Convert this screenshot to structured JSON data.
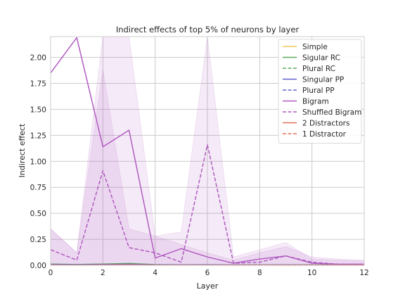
{
  "chart_data": {
    "type": "line",
    "title": "Indirect effects of top 5% of neurons by layer",
    "xlabel": "Layer",
    "ylabel": "Indirect effect",
    "xlim": [
      0,
      12
    ],
    "ylim": [
      0,
      2.2
    ],
    "x_ticks": [
      "0",
      "2",
      "4",
      "6",
      "8",
      "10",
      "12"
    ],
    "y_ticks": [
      "0.00",
      "0.25",
      "0.50",
      "0.75",
      "1.00",
      "1.25",
      "1.50",
      "1.75",
      "2.00"
    ],
    "grid": true,
    "legend_position": "top-right",
    "x": [
      0,
      1,
      2,
      3,
      4,
      5,
      6,
      7,
      8,
      9,
      10,
      11,
      12
    ],
    "series": [
      {
        "name": "Simple",
        "color": "#f2c85b",
        "dash": "solid",
        "values": [
          0.005,
          0.004,
          0.005,
          0.006,
          0.004,
          0.003,
          0.004,
          0.003,
          0.003,
          0.003,
          0.003,
          0.003,
          0.003
        ]
      },
      {
        "name": "Sigular RC",
        "color": "#5aaa5a",
        "dash": "solid",
        "values": [
          0.012,
          0.008,
          0.012,
          0.018,
          0.007,
          0.005,
          0.006,
          0.004,
          0.004,
          0.005,
          0.004,
          0.004,
          0.004
        ]
      },
      {
        "name": "Plural RC",
        "color": "#5aaa5a",
        "dash": "dashed",
        "values": [
          0.01,
          0.007,
          0.01,
          0.015,
          0.006,
          0.004,
          0.005,
          0.004,
          0.004,
          0.004,
          0.004,
          0.004,
          0.004
        ]
      },
      {
        "name": "Singular PP",
        "color": "#6060d0",
        "dash": "solid",
        "values": [
          0.008,
          0.006,
          0.008,
          0.01,
          0.005,
          0.004,
          0.005,
          0.004,
          0.003,
          0.004,
          0.003,
          0.003,
          0.003
        ]
      },
      {
        "name": "Plural PP",
        "color": "#6060d0",
        "dash": "dashed",
        "values": [
          0.007,
          0.005,
          0.007,
          0.009,
          0.004,
          0.004,
          0.004,
          0.003,
          0.003,
          0.003,
          0.003,
          0.003,
          0.003
        ]
      },
      {
        "name": "Bigram",
        "color": "#b05cc0",
        "dash": "solid",
        "values": [
          1.85,
          2.19,
          1.14,
          1.3,
          0.07,
          0.16,
          0.08,
          0.02,
          0.06,
          0.09,
          0.02,
          0.01,
          0.01
        ],
        "band_upper": [
          0.35,
          0.12,
          2.2,
          2.2,
          0.28,
          0.2,
          0.12,
          0.05,
          0.12,
          0.18,
          0.08,
          0.06,
          0.05
        ],
        "band_lower": [
          0,
          0,
          0,
          0,
          0,
          0,
          0,
          0,
          0,
          0,
          0,
          0,
          0
        ]
      },
      {
        "name": "Shuffled Bigram",
        "color": "#b05cc0",
        "dash": "dashed",
        "values": [
          0.15,
          0.05,
          0.91,
          0.17,
          0.12,
          0.03,
          1.16,
          0.02,
          0.03,
          0.09,
          0.03,
          0.01,
          0.01
        ],
        "band_upper": [
          0.35,
          0.12,
          1.88,
          0.35,
          0.28,
          0.32,
          2.2,
          0.08,
          0.15,
          0.22,
          0.06,
          0.05,
          0.04
        ],
        "band_lower": [
          0,
          0,
          0,
          0,
          0,
          0,
          0,
          0,
          0,
          0,
          0,
          0,
          0
        ]
      },
      {
        "name": "2 Distractors",
        "color": "#e0705c",
        "dash": "solid",
        "values": [
          0.003,
          0.002,
          0.003,
          0.004,
          0.002,
          0.002,
          0.002,
          0.002,
          0.002,
          0.002,
          0.002,
          0.002,
          0.002
        ]
      },
      {
        "name": "1 Distractor",
        "color": "#e0705c",
        "dash": "dashed",
        "values": [
          0.002,
          0.002,
          0.002,
          0.003,
          0.002,
          0.002,
          0.002,
          0.001,
          0.001,
          0.001,
          0.001,
          0.001,
          0.001
        ]
      }
    ]
  }
}
